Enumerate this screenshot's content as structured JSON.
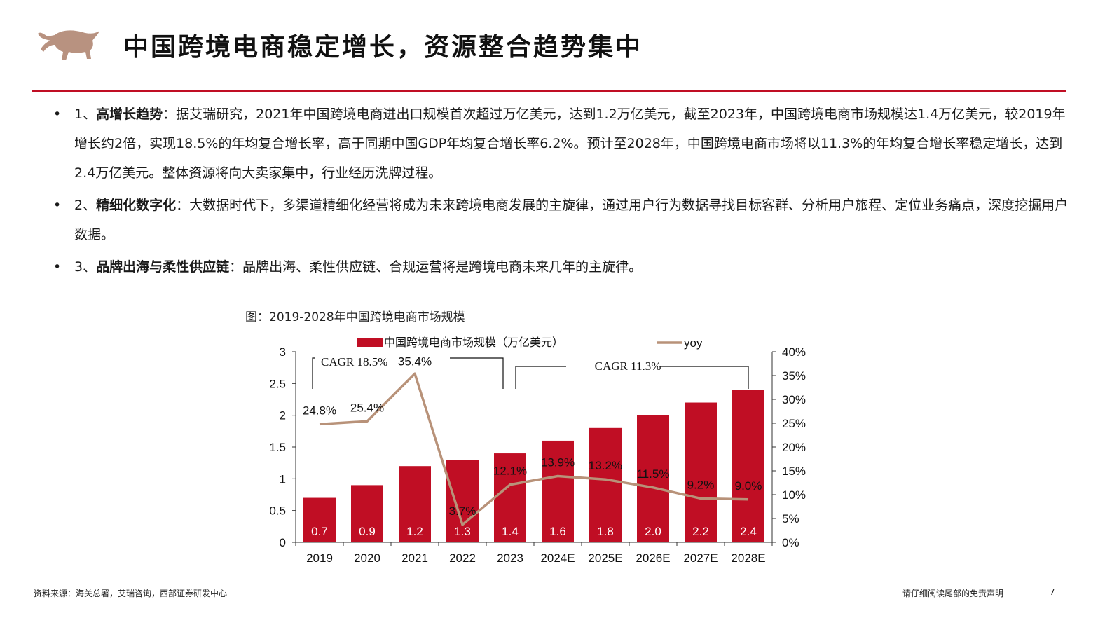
{
  "header": {
    "title": "中国跨境电商稳定增长，资源整合趋势集中",
    "accent_color": "#c00e24",
    "logo_color": "#b89280"
  },
  "bullets": [
    {
      "dot": "•",
      "lead": "1、",
      "bold": "高增长趋势",
      "text": "：据艾瑞研究，2021年中国跨境电商进出口规模首次超过万亿美元，达到1.2万亿美元，截至2023年，中国跨境电商市场规模达1.4万亿美元，较2019年增长约2倍，实现18.5%的年均复合增长率，高于同期中国GDP年均复合增长率6.2%。预计至2028年，中国跨境电商市场将以11.3%的年均复合增长率稳定增长，达到2.4万亿美元。整体资源将向大卖家集中，行业经历洗牌过程。"
    },
    {
      "dot": "•",
      "lead": "2、",
      "bold": "精细化数字化",
      "text": "：大数据时代下，多渠道精细化经营将成为未来跨境电商发展的主旋律，通过用户行为数据寻找目标客群、分析用户旅程、定位业务痛点，深度挖掘用户数据。"
    },
    {
      "dot": "•",
      "lead": "3、",
      "bold": "品牌出海与柔性供应链",
      "text": "：品牌出海、柔性供应链、合规运营将是跨境电商未来几年的主旋律。"
    }
  ],
  "figure_caption": "图：2019-2028年中国跨境电商市场规模",
  "chart_data": {
    "type": "bar",
    "categories": [
      "2019",
      "2020",
      "2021",
      "2022",
      "2023",
      "2024E",
      "2025E",
      "2026E",
      "2027E",
      "2028E"
    ],
    "series": [
      {
        "name": "中国跨境电商市场规模（万亿美元）",
        "type": "bar",
        "axis": "left",
        "color": "#c00e24",
        "values": [
          0.7,
          0.9,
          1.2,
          1.3,
          1.4,
          1.6,
          1.8,
          2.0,
          2.2,
          2.4
        ],
        "labels": [
          "0.7",
          "0.9",
          "1.2",
          "1.3",
          "1.4",
          "1.6",
          "1.8",
          "2.0",
          "2.2",
          "2.4"
        ]
      },
      {
        "name": "yoy",
        "type": "line",
        "axis": "right",
        "color": "#b89279",
        "values": [
          24.8,
          25.4,
          35.4,
          3.7,
          12.1,
          13.9,
          13.2,
          11.5,
          9.2,
          9.0
        ],
        "labels": [
          "24.8%",
          "25.4%",
          "35.4%",
          "3.7%",
          "12.1%",
          "13.9%",
          "13.2%",
          "11.5%",
          "9.2%",
          "9.0%"
        ]
      }
    ],
    "y_left": {
      "ylim": [
        0,
        3
      ],
      "ticks": [
        "0",
        "0.5",
        "1",
        "1.5",
        "2",
        "2.5",
        "3"
      ]
    },
    "y_right": {
      "ylim": [
        0,
        40
      ],
      "ticks": [
        "0%",
        "5%",
        "10%",
        "15%",
        "20%",
        "25%",
        "30%",
        "35%",
        "40%"
      ]
    },
    "annotations": [
      "CAGR 18.5%",
      "CAGR 11.3%"
    ],
    "legend_position": "top",
    "grid": false
  },
  "footer": {
    "source": "资料来源：海关总署，艾瑞咨询，西部证券研发中心",
    "disclaimer": "请仔细阅读尾部的免责声明",
    "page": "7"
  }
}
